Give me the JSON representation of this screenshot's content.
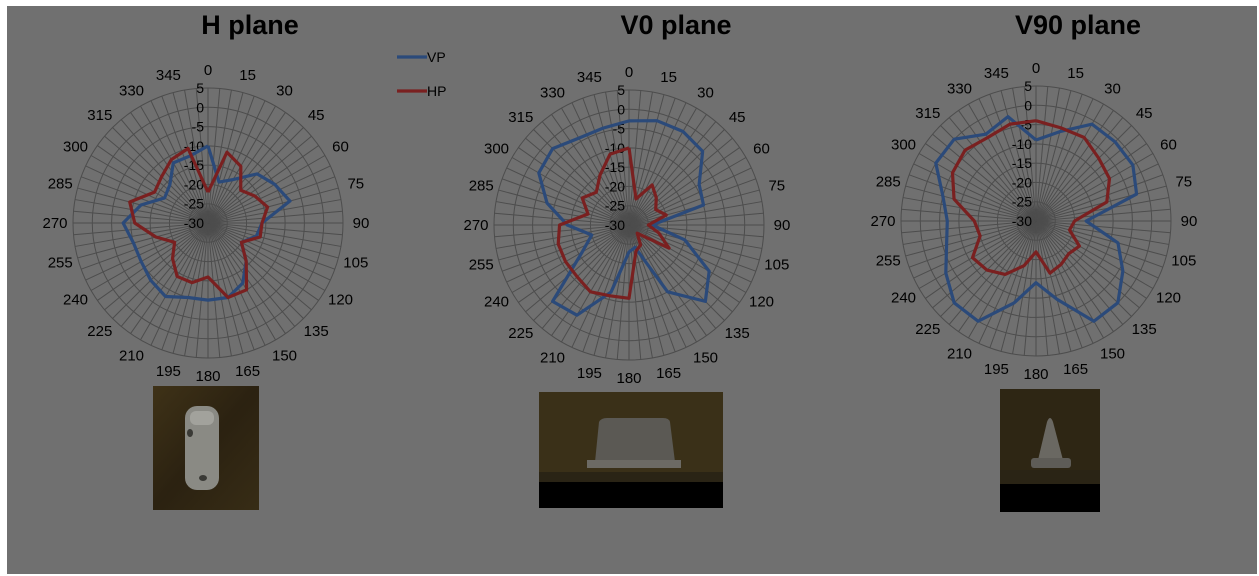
{
  "colors": {
    "VP": "#2b4a7a",
    "HP": "#7a2020"
  },
  "chart_data": [
    {
      "type": "line",
      "polar": true,
      "title": "H plane",
      "angles": [
        "0",
        "15",
        "30",
        "45",
        "60",
        "75",
        "90",
        "105",
        "120",
        "135",
        "150",
        "165",
        "180",
        "195",
        "210",
        "225",
        "240",
        "255",
        "270",
        "285",
        "300",
        "315",
        "330",
        "345"
      ],
      "radial_ticks": [
        "5",
        "0",
        "-5",
        "-10",
        "-15",
        "-20",
        "-25",
        "-30"
      ],
      "rlim": [
        -30,
        5
      ],
      "legend": [
        "VP",
        "HP"
      ],
      "legend_placement": "top-right",
      "series": [
        {
          "name": "VP",
          "values": [
            -10,
            -19,
            -17,
            -12,
            -10,
            -8,
            -16,
            -17,
            -20,
            -16,
            -12,
            -10,
            -10,
            -10,
            -8,
            -9,
            -10,
            -10,
            -8,
            -12,
            -17,
            -16,
            -12,
            -12
          ]
        },
        {
          "name": "HP",
          "values": [
            -22,
            -11,
            -13,
            -18,
            -16,
            -14,
            -16,
            -16,
            -20,
            -16,
            -10,
            -10,
            -16,
            -14,
            -14,
            -17,
            -20,
            -16,
            -11,
            -9,
            -14,
            -13,
            -11,
            -10
          ]
        }
      ]
    },
    {
      "type": "line",
      "polar": true,
      "title": "V0 plane",
      "angles": [
        "0",
        "15",
        "30",
        "45",
        "60",
        "75",
        "90",
        "105",
        "120",
        "135",
        "150",
        "165",
        "180",
        "195",
        "210",
        "225",
        "240",
        "255",
        "270",
        "285",
        "300",
        "315",
        "330",
        "345"
      ],
      "radial_ticks": [
        "5",
        "0",
        "-5",
        "-10",
        "-15",
        "-20",
        "-25",
        "-30"
      ],
      "rlim": [
        -30,
        5
      ],
      "legend": [
        "VP",
        "HP"
      ],
      "series": [
        {
          "name": "VP",
          "values": [
            -3,
            -2,
            -2,
            -3,
            -9,
            -10,
            -24,
            -15,
            -6,
            -2,
            -10,
            -24,
            -23,
            -12,
            -3,
            -2,
            -16,
            -20,
            -14,
            -8,
            -3,
            -2,
            -4,
            -4
          ]
        },
        {
          "name": "HP",
          "values": [
            -10,
            -23,
            -18,
            -20,
            -22,
            -20,
            -25,
            -22,
            -18,
            -27,
            -24,
            -23,
            -11,
            -11,
            -10,
            -11,
            -11,
            -11,
            -12,
            -19,
            -16,
            -18,
            -15,
            -11
          ]
        }
      ]
    },
    {
      "type": "line",
      "polar": true,
      "title": "V90 plane",
      "angles": [
        "0",
        "15",
        "30",
        "45",
        "60",
        "75",
        "90",
        "105",
        "120",
        "135",
        "150",
        "165",
        "180",
        "195",
        "210",
        "225",
        "240",
        "255",
        "270",
        "285",
        "300",
        "315",
        "330",
        "345"
      ],
      "radial_ticks": [
        "5",
        "0",
        "-5",
        "-10",
        "-15",
        "-20",
        "-25",
        "-30"
      ],
      "rlim": [
        -30,
        5
      ],
      "legend": [
        "VP",
        "HP"
      ],
      "series": [
        {
          "name": "VP",
          "values": [
            -9,
            -6,
            -1,
            -1,
            -1,
            -3,
            -17,
            -8,
            -4,
            0,
            0,
            -9,
            -14,
            -8,
            0,
            0,
            -3,
            -6,
            -7,
            -5,
            0,
            0,
            -4,
            -2
          ]
        },
        {
          "name": "HP",
          "values": [
            -4,
            -5,
            -5,
            -7,
            -8,
            -11,
            -20,
            -21,
            -17,
            -18,
            -17,
            -16,
            -22,
            -18,
            -14,
            -12,
            -11,
            -15,
            -14,
            -8,
            -5,
            -4,
            -5,
            -4
          ]
        }
      ]
    }
  ],
  "photos": [
    {
      "name": "H plane antenna top view"
    },
    {
      "name": "V0 plane antenna side view"
    },
    {
      "name": "V90 plane antenna end view"
    }
  ]
}
